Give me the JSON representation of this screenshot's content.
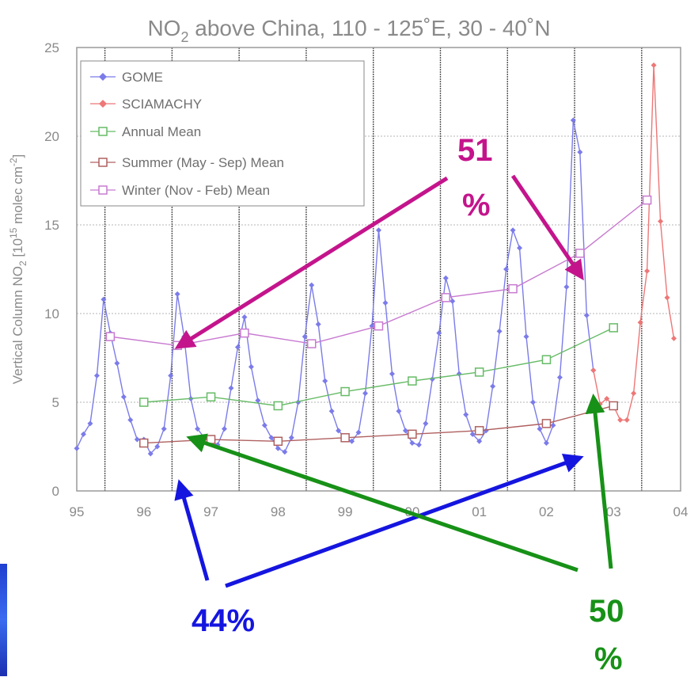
{
  "chart_data": {
    "type": "line",
    "title": "NO2 above China, 110 - 125˚E, 30 - 40˚N",
    "title_main": "NO",
    "title_sub": "2",
    "title_rest": " above China, 110 - 125˚E, 30 - 40˚N",
    "ylabel": "Vertical Column NO2 [10^15 molec cm^-2]",
    "ylabel_parts": {
      "a": "Vertical Column NO",
      "sub": "2",
      "b": " [10",
      "sup1": "15",
      "c": " molec cm",
      "sup2": "-2",
      "d": "]"
    },
    "xlim": [
      1995.0,
      2004.0
    ],
    "ylim": [
      0,
      25
    ],
    "x_ticks": [
      {
        "v": 1995,
        "label": "95"
      },
      {
        "v": 1996,
        "label": "96"
      },
      {
        "v": 1997,
        "label": "97"
      },
      {
        "v": 1998,
        "label": "98"
      },
      {
        "v": 1999,
        "label": "99"
      },
      {
        "v": 2000,
        "label": "00"
      },
      {
        "v": 2001,
        "label": "01"
      },
      {
        "v": 2002,
        "label": "02"
      },
      {
        "v": 2003,
        "label": "03"
      },
      {
        "v": 2004,
        "label": "04"
      }
    ],
    "y_ticks": [
      0,
      5,
      10,
      15,
      20,
      25
    ],
    "vertical_grid_x": [
      1995.42,
      1996.42,
      1997.42,
      1998.42,
      1999.42,
      2000.42,
      2001.42,
      2002.42,
      2003.42
    ],
    "grid": true,
    "legend_position": "top-left",
    "series": [
      {
        "name": "GOME",
        "color": "#7b7bea",
        "marker": "diamond",
        "x": [
          1995.0,
          1995.1,
          1995.2,
          1995.3,
          1995.4,
          1995.5,
          1995.6,
          1995.7,
          1995.8,
          1995.9,
          1996.0,
          1996.1,
          1996.2,
          1996.3,
          1996.4,
          1996.5,
          1996.6,
          1996.7,
          1996.8,
          1996.9,
          1997.0,
          1997.1,
          1997.2,
          1997.3,
          1997.4,
          1997.5,
          1997.6,
          1997.7,
          1997.8,
          1997.9,
          1998.0,
          1998.1,
          1998.2,
          1998.3,
          1998.4,
          1998.5,
          1998.6,
          1998.7,
          1998.8,
          1998.9,
          1999.0,
          1999.1,
          1999.2,
          1999.3,
          1999.4,
          1999.5,
          1999.6,
          1999.7,
          1999.8,
          1999.9,
          2000.0,
          2000.1,
          2000.2,
          2000.3,
          2000.4,
          2000.5,
          2000.6,
          2000.7,
          2000.8,
          2000.9,
          2001.0,
          2001.1,
          2001.2,
          2001.3,
          2001.4,
          2001.5,
          2001.6,
          2001.7,
          2001.8,
          2001.9,
          2002.0,
          2002.1,
          2002.2,
          2002.3,
          2002.4,
          2002.5,
          2002.6,
          2002.7
        ],
        "values": [
          2.4,
          3.2,
          3.8,
          6.5,
          10.8,
          8.9,
          7.2,
          5.3,
          4.0,
          2.9,
          2.9,
          2.1,
          2.5,
          3.5,
          6.5,
          11.1,
          8.7,
          5.2,
          3.5,
          3.0,
          2.8,
          2.6,
          3.5,
          5.8,
          8.1,
          9.8,
          7.0,
          5.1,
          3.7,
          3.0,
          2.4,
          2.2,
          3.0,
          5.0,
          8.7,
          11.6,
          9.4,
          6.2,
          4.5,
          3.4,
          3.0,
          2.8,
          3.3,
          5.5,
          9.3,
          14.7,
          10.6,
          6.6,
          4.5,
          3.4,
          2.7,
          2.6,
          3.8,
          6.3,
          8.9,
          12.0,
          10.7,
          6.6,
          4.3,
          3.2,
          2.8,
          3.4,
          5.9,
          9.0,
          12.5,
          14.7,
          13.7,
          8.7,
          5.0,
          3.5,
          2.7,
          3.7,
          6.4,
          11.5,
          20.9,
          19.1,
          9.9,
          6.8
        ]
      },
      {
        "name": "SCIAMACHY",
        "color": "#ee7777",
        "marker": "diamond",
        "x": [
          2002.7,
          2002.8,
          2002.9,
          2003.0,
          2003.1,
          2003.2,
          2003.3,
          2003.4,
          2003.5,
          2003.6,
          2003.7,
          2003.8,
          2003.9
        ],
        "values": [
          6.8,
          4.9,
          5.2,
          4.8,
          4.0,
          4.0,
          5.5,
          9.5,
          12.4,
          24.0,
          15.2,
          10.9,
          8.6
        ]
      },
      {
        "name": "Annual Mean",
        "color": "#66bb66",
        "marker": "square",
        "x": [
          1996.0,
          1997.0,
          1998.0,
          1999.0,
          2000.0,
          2001.0,
          2002.0,
          2003.0
        ],
        "values": [
          5.0,
          5.3,
          4.8,
          5.6,
          6.2,
          6.7,
          7.4,
          9.2
        ]
      },
      {
        "name": "Summer (May - Sep) Mean",
        "color": "#b06060",
        "marker": "square",
        "x": [
          1996.0,
          1997.0,
          1998.0,
          1999.0,
          2000.0,
          2001.0,
          2002.0,
          2003.0
        ],
        "values": [
          2.7,
          2.9,
          2.8,
          3.0,
          3.2,
          3.4,
          3.8,
          4.8
        ]
      },
      {
        "name": "Winter (Nov - Feb) Mean",
        "color": "#c87ad0",
        "marker": "square",
        "x": [
          1995.5,
          1996.5,
          1997.5,
          1998.5,
          1999.5,
          2000.5,
          2001.5,
          2002.5,
          2003.5
        ],
        "values": [
          8.7,
          8.2,
          8.9,
          8.3,
          9.3,
          10.9,
          11.4,
          13.4,
          16.4
        ]
      }
    ],
    "annotations": [
      {
        "text": "51",
        "text2": "%",
        "color": "#c4148c"
      },
      {
        "text": "44%",
        "color": "#1515e0"
      },
      {
        "text": "50",
        "text2": "%",
        "color": "#179117"
      }
    ]
  }
}
